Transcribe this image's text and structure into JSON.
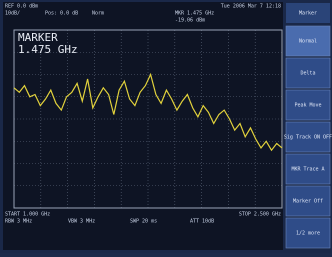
{
  "header": {
    "ref": "REF 0.0 dBm",
    "scale": "10dB/",
    "offset": "Pos: 0.0 dB",
    "mode": "Norm",
    "datetime": "Tue 2006 Mar 7 12:18",
    "marker_readout": "MKR 1.475 GHz",
    "marker_level": "-19.06 dBm"
  },
  "marker": {
    "label": "MARKER",
    "value": "1.475 GHz"
  },
  "menu": {
    "title": "Marker",
    "items": [
      "Normal",
      "Delta",
      "Peak Move",
      "Sig Track ON OFF",
      "MKR Trace A",
      "Marker Off",
      "1/2 more"
    ]
  },
  "footer": {
    "start": "START 1.000 GHz",
    "stop": "STOP 2.500 GHz",
    "rbw": "RBW 3 MHz",
    "vbw": "VBW 3 MHz",
    "swp": "SWP 20 ms",
    "att": "ATT 10dB"
  },
  "trace": {
    "color": "#e2d23c",
    "values": [
      2.6,
      2.8,
      2.5,
      3.0,
      2.9,
      3.4,
      3.1,
      2.7,
      3.3,
      3.6,
      3.0,
      2.8,
      2.4,
      3.2,
      2.2,
      3.5,
      3.0,
      2.6,
      2.9,
      3.8,
      2.7,
      2.3,
      3.1,
      3.4,
      2.8,
      2.5,
      2.0,
      2.9,
      3.3,
      2.7,
      3.1,
      3.6,
      3.2,
      2.9,
      3.5,
      3.9,
      3.4,
      3.7,
      4.2,
      3.8,
      3.6,
      4.0,
      4.5,
      4.2,
      4.8,
      4.4,
      4.9,
      5.3,
      5.0,
      5.4,
      5.1,
      5.3
    ]
  }
}
